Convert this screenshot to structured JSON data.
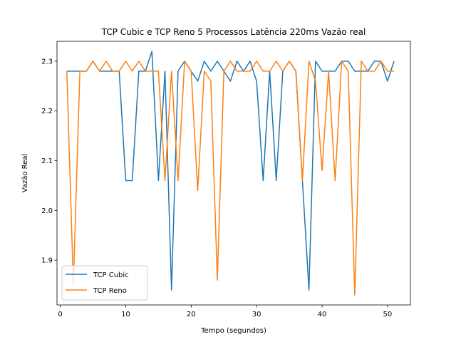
{
  "chart_data": {
    "type": "line",
    "title": "TCP Cubic e TCP Reno 5 Processos Latência 220ms Vazão real",
    "xlabel": "Tempo (segundos)",
    "ylabel": "Vazão Real",
    "xlim": [
      -0.5,
      53.5
    ],
    "ylim": [
      1.81,
      2.34
    ],
    "xticks": [
      0,
      10,
      20,
      30,
      40,
      50
    ],
    "yticks": [
      1.9,
      2.0,
      2.1,
      2.2,
      2.3
    ],
    "xtick_labels": [
      "0",
      "10",
      "20",
      "30",
      "40",
      "50"
    ],
    "ytick_labels": [
      "1.9",
      "2.0",
      "2.1",
      "2.2",
      "2.3"
    ],
    "grid": false,
    "legend_position": "lower-left",
    "x": [
      1,
      2,
      3,
      4,
      5,
      6,
      7,
      8,
      9,
      10,
      11,
      12,
      13,
      14,
      15,
      16,
      17,
      18,
      19,
      20,
      21,
      22,
      23,
      24,
      25,
      26,
      27,
      28,
      29,
      30,
      31,
      32,
      33,
      34,
      35,
      36,
      37,
      38,
      39,
      40,
      41,
      42,
      43,
      44,
      45,
      46,
      47,
      48,
      49,
      50,
      51
    ],
    "series": [
      {
        "name": "TCP Cubic",
        "color": "#1f77b4",
        "values": [
          2.28,
          2.28,
          2.28,
          2.28,
          2.3,
          2.28,
          2.28,
          2.28,
          2.28,
          2.06,
          2.06,
          2.28,
          2.28,
          2.32,
          2.06,
          2.28,
          1.84,
          2.28,
          2.3,
          2.28,
          2.26,
          2.3,
          2.28,
          2.3,
          2.28,
          2.26,
          2.3,
          2.28,
          2.3,
          2.26,
          2.06,
          2.28,
          2.06,
          2.28,
          2.3,
          2.28,
          2.06,
          1.84,
          2.3,
          2.28,
          2.28,
          2.28,
          2.3,
          2.3,
          2.28,
          2.28,
          2.28,
          2.3,
          2.3,
          2.26,
          2.3
        ]
      },
      {
        "name": "TCP Reno",
        "color": "#ff7f0e",
        "values": [
          2.28,
          1.85,
          2.28,
          2.28,
          2.3,
          2.28,
          2.3,
          2.28,
          2.28,
          2.3,
          2.28,
          2.3,
          2.28,
          2.28,
          2.28,
          2.06,
          2.28,
          2.06,
          2.3,
          2.28,
          2.04,
          2.28,
          2.26,
          1.86,
          2.28,
          2.3,
          2.28,
          2.28,
          2.28,
          2.3,
          2.28,
          2.28,
          2.3,
          2.28,
          2.3,
          2.28,
          2.06,
          2.3,
          2.26,
          2.08,
          2.28,
          2.06,
          2.3,
          2.28,
          1.83,
          2.3,
          2.28,
          2.28,
          2.3,
          2.28,
          2.28
        ]
      }
    ]
  }
}
